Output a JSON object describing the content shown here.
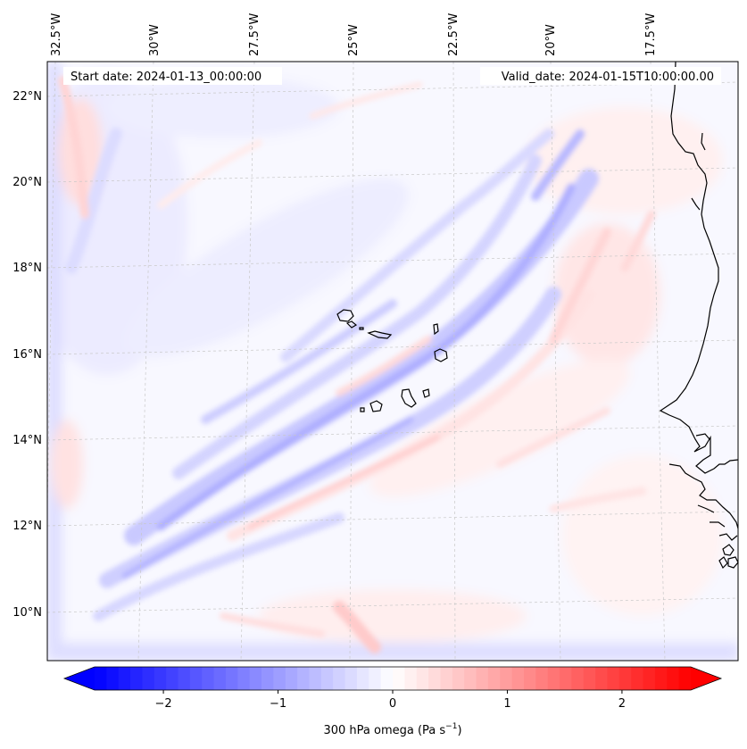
{
  "map": {
    "start_date": "Start date: 2024-01-13_00:00:00",
    "valid_date": "Valid_date: 2024-01-15T10:00:00.00",
    "lon_labels": [
      "32.5°W",
      "30°W",
      "27.5°W",
      "25°W",
      "22.5°W",
      "20°W",
      "17.5°W"
    ],
    "lat_labels": [
      "22°N",
      "20°N",
      "18°N",
      "16°N",
      "14°N",
      "12°N",
      "10°N"
    ],
    "colors": {
      "negative": "#0000ff",
      "zero": "#ffffff",
      "positive": "#ff0000",
      "coastline": "#000000",
      "gridline": "#c8c8c8"
    }
  },
  "colorbar": {
    "ticks": [
      "−2",
      "−1",
      "0",
      "1",
      "2"
    ],
    "range": [
      -2.6,
      2.6
    ],
    "label_main": "300 hPa omega (Pa s",
    "label_sup": "−1",
    "label_end": ")"
  }
}
